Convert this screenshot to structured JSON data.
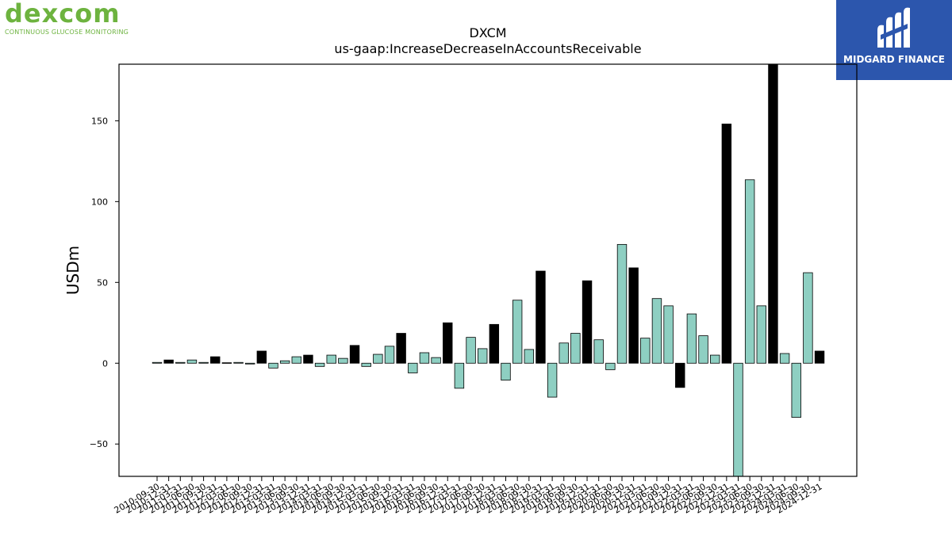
{
  "brand": {
    "left_logo": "dexcom",
    "left_tagline": "CONTINUOUS GLUCOSE MONITORING",
    "right_logo": "MIDGARD FINANCE",
    "left_color": "#6db33f",
    "right_bg": "#2c56ad"
  },
  "chart_data": {
    "type": "bar",
    "title": "DXCM",
    "subtitle": "us-gaap:IncreaseDecreaseInAccountsReceivable",
    "ylabel": "USDm",
    "xlabel": "",
    "ylim": [
      -70,
      185
    ],
    "yticks": [
      -50,
      0,
      50,
      100,
      150
    ],
    "grid": false,
    "colors": {
      "quarterly": "#8ecfc2",
      "annual": "#000000"
    },
    "categories": [
      "2010-09-30",
      "2010-12-31",
      "2011-03-31",
      "2011-06-30",
      "2011-09-30",
      "2011-12-31",
      "2012-03-31",
      "2012-06-30",
      "2012-09-30",
      "2012-12-31",
      "2013-03-31",
      "2013-06-30",
      "2013-09-30",
      "2013-12-31",
      "2014-03-31",
      "2014-06-30",
      "2014-09-30",
      "2014-12-31",
      "2015-03-31",
      "2015-06-30",
      "2015-09-30",
      "2015-12-31",
      "2016-03-31",
      "2016-06-30",
      "2016-09-30",
      "2016-12-31",
      "2017-03-31",
      "2017-06-30",
      "2017-09-30",
      "2017-12-31",
      "2018-03-31",
      "2018-06-30",
      "2018-09-30",
      "2018-12-31",
      "2019-03-31",
      "2019-06-30",
      "2019-09-30",
      "2019-12-31",
      "2020-03-31",
      "2020-06-30",
      "2020-09-30",
      "2020-12-31",
      "2021-03-31",
      "2021-06-30",
      "2021-09-30",
      "2021-12-31",
      "2022-03-31",
      "2022-06-30",
      "2022-09-30",
      "2022-12-31",
      "2023-03-31",
      "2023-06-30",
      "2023-09-30",
      "2023-12-31",
      "2024-03-31",
      "2024-06-30",
      "2024-09-30",
      "2024-12-31"
    ],
    "values": [
      0.5,
      2,
      0.5,
      2,
      0.5,
      4,
      0.3,
      0.5,
      -0.5,
      7.5,
      -3,
      1.5,
      4,
      5,
      -2,
      5,
      3,
      11,
      -2,
      5.5,
      10.5,
      18.5,
      -6,
      6.5,
      3.5,
      25,
      -15.5,
      16,
      9,
      24,
      -10.5,
      39,
      8.5,
      57,
      -21,
      12.5,
      18.5,
      51,
      14.5,
      -4,
      73.5,
      59,
      15.5,
      40,
      35.5,
      -15,
      30.5,
      17,
      5,
      148,
      -70,
      113.5,
      35.5,
      185,
      6,
      -33.5,
      56,
      7.5
    ],
    "annual": [
      false,
      true,
      false,
      false,
      false,
      true,
      false,
      false,
      false,
      true,
      false,
      false,
      false,
      true,
      false,
      false,
      false,
      true,
      false,
      false,
      false,
      true,
      false,
      false,
      false,
      true,
      false,
      false,
      false,
      true,
      false,
      false,
      false,
      true,
      false,
      false,
      false,
      true,
      false,
      false,
      false,
      true,
      false,
      false,
      false,
      true,
      false,
      false,
      false,
      true,
      false,
      false,
      false,
      true,
      false,
      false,
      false,
      true
    ]
  }
}
